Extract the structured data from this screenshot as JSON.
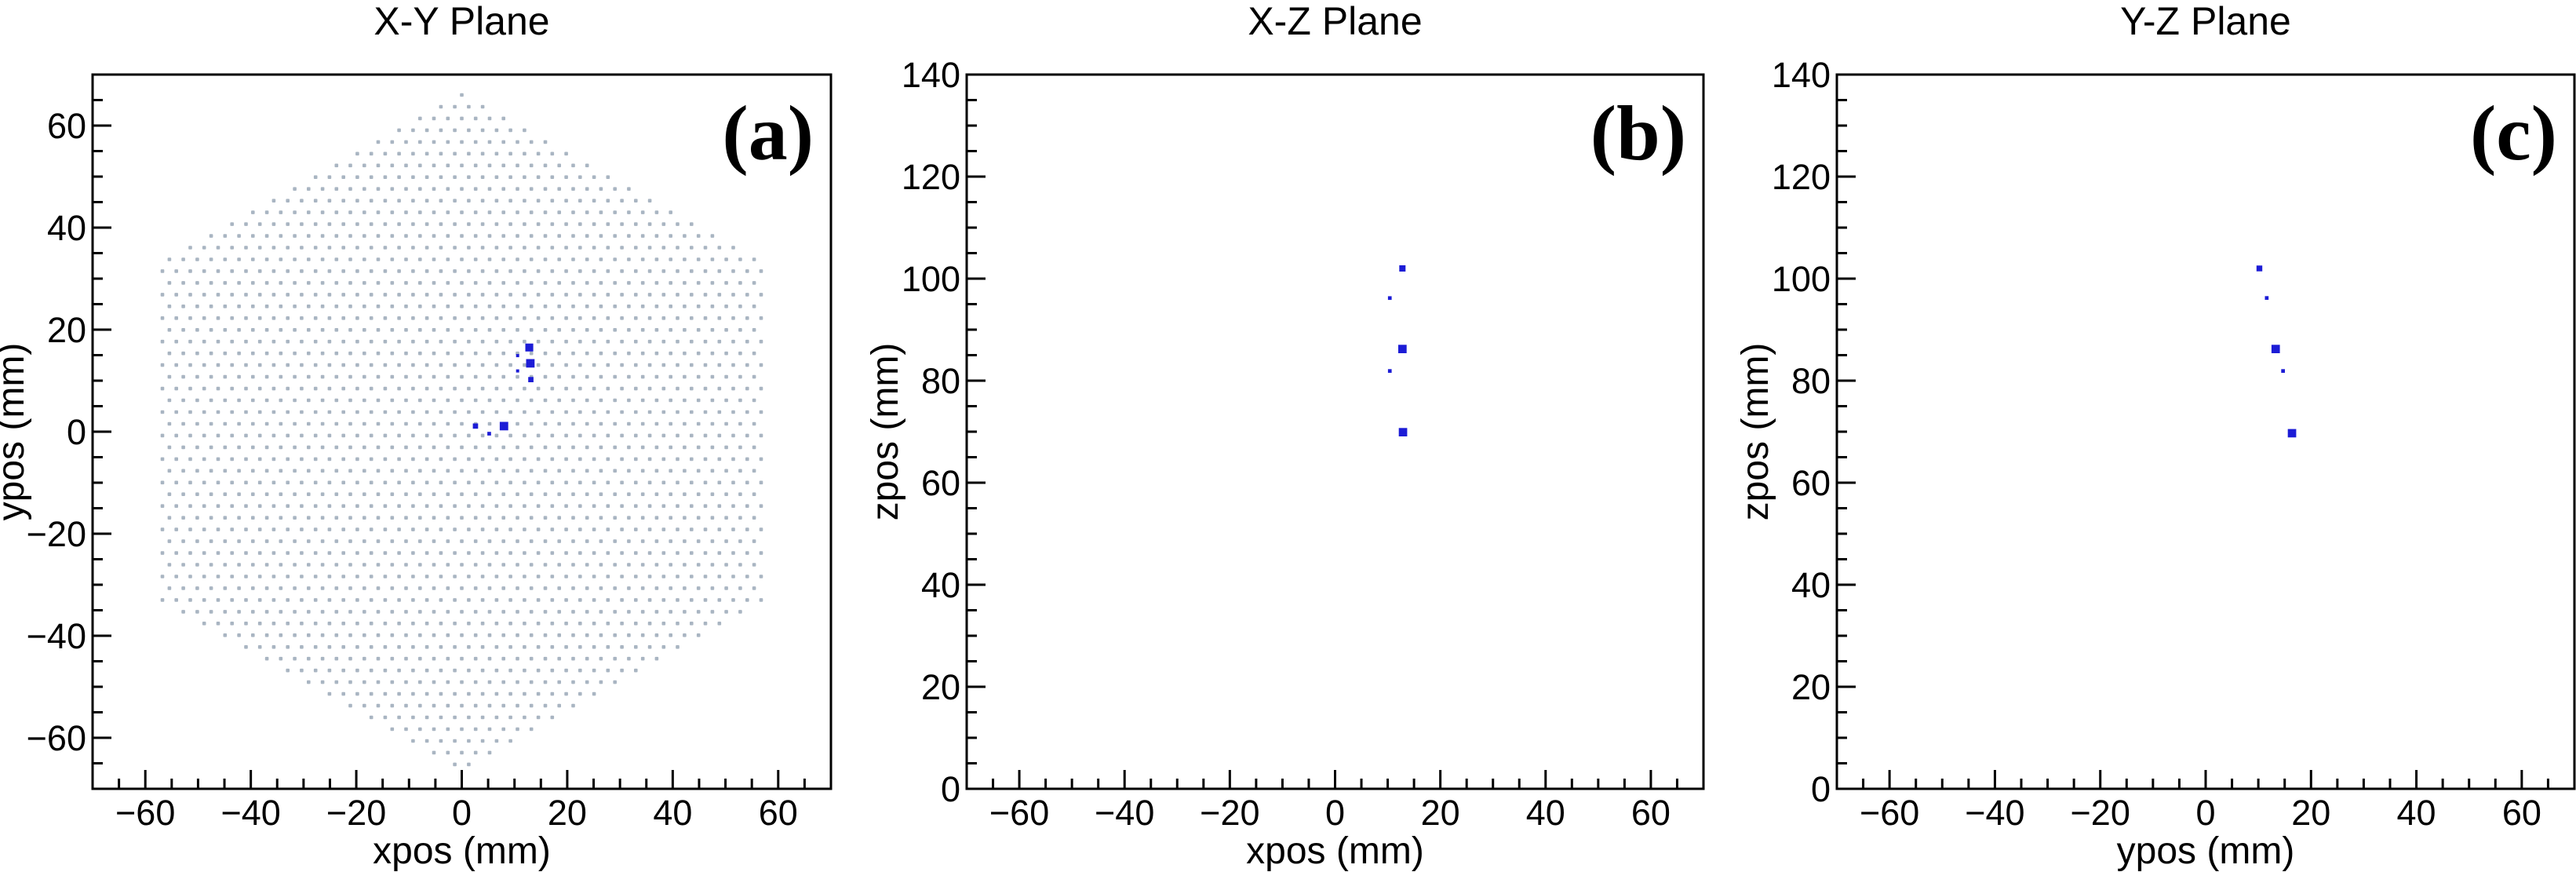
{
  "figure": {
    "background": "#ffffff"
  },
  "style": {
    "hit_color": "#1c1cd6",
    "lattice_color": "#a9b5c2",
    "axis_color": "#000000",
    "text_color": "#000000"
  },
  "chart_data": [
    {
      "type": "scatter",
      "id": "xy-plane",
      "title": "X-Y Plane",
      "corner_label": "(a)",
      "xlabel": "xpos (mm)",
      "ylabel": "ypos (mm)",
      "xlim": [
        -70,
        70
      ],
      "ylim": [
        -70,
        70
      ],
      "xticks": [
        -60,
        -40,
        -20,
        0,
        20,
        40,
        60
      ],
      "xtick_labels": [
        "−60",
        "−40",
        "−20",
        "0",
        "20",
        "40",
        "60"
      ],
      "yticks": [
        -60,
        -40,
        -20,
        0,
        20,
        40,
        60
      ],
      "ytick_labels": [
        "−60",
        "−40",
        "−20",
        "0",
        "20",
        "40",
        "60"
      ],
      "minor_tick_step": 5,
      "grid": false,
      "detector_lattice": {
        "shape": "hexagon-pointy-top",
        "pitch_x_mm": 2.64,
        "pitch_y_mm": 2.302,
        "row_stagger_mm": 1.32,
        "apex_y_mm": 66.0,
        "hex_radius_mm": 66.2,
        "max_abs_x_mm": 57.7
      },
      "hits": [
        {
          "x": 12.8,
          "y": 16.5,
          "size_mm": 1.5
        },
        {
          "x": 10.6,
          "y": 14.9,
          "size_mm": 0.6
        },
        {
          "x": 13.0,
          "y": 13.4,
          "size_mm": 1.6
        },
        {
          "x": 10.6,
          "y": 11.9,
          "size_mm": 0.6
        },
        {
          "x": 13.1,
          "y": 10.2,
          "size_mm": 1.0
        },
        {
          "x": 2.6,
          "y": 1.1,
          "size_mm": 1.0
        },
        {
          "x": 8.0,
          "y": 1.1,
          "size_mm": 1.6
        },
        {
          "x": 5.2,
          "y": -0.4,
          "size_mm": 0.7
        }
      ]
    },
    {
      "type": "scatter",
      "id": "xz-plane",
      "title": "X-Z Plane",
      "corner_label": "(b)",
      "xlabel": "xpos (mm)",
      "ylabel": "zpos (mm)",
      "xlim": [
        -70,
        70
      ],
      "ylim": [
        0,
        140
      ],
      "xticks": [
        -60,
        -40,
        -20,
        0,
        20,
        40,
        60
      ],
      "xtick_labels": [
        "−60",
        "−40",
        "−20",
        "0",
        "20",
        "40",
        "60"
      ],
      "yticks": [
        0,
        20,
        40,
        60,
        80,
        100,
        120,
        140
      ],
      "ytick_labels": [
        "0",
        "20",
        "40",
        "60",
        "80",
        "100",
        "120",
        "140"
      ],
      "minor_tick_step": 5,
      "grid": false,
      "detector_lattice": null,
      "hits": [
        {
          "x": 12.8,
          "y": 102.0,
          "size_mm": 1.2
        },
        {
          "x": 10.4,
          "y": 96.2,
          "size_mm": 0.7
        },
        {
          "x": 12.8,
          "y": 86.2,
          "size_mm": 1.6
        },
        {
          "x": 10.4,
          "y": 81.9,
          "size_mm": 0.7
        },
        {
          "x": 12.9,
          "y": 69.9,
          "size_mm": 1.6
        }
      ]
    },
    {
      "type": "scatter",
      "id": "yz-plane",
      "title": "Y-Z Plane",
      "corner_label": "(c)",
      "xlabel": "ypos (mm)",
      "ylabel": "zpos (mm)",
      "xlim": [
        -70,
        70
      ],
      "ylim": [
        0,
        140
      ],
      "xticks": [
        -60,
        -40,
        -20,
        0,
        20,
        40,
        60
      ],
      "xtick_labels": [
        "−60",
        "−40",
        "−20",
        "0",
        "20",
        "40",
        "60"
      ],
      "yticks": [
        0,
        20,
        40,
        60,
        80,
        100,
        120,
        140
      ],
      "ytick_labels": [
        "0",
        "20",
        "40",
        "60",
        "80",
        "100",
        "120",
        "140"
      ],
      "minor_tick_step": 5,
      "grid": false,
      "detector_lattice": null,
      "hits": [
        {
          "x": 10.2,
          "y": 102.0,
          "size_mm": 1.1
        },
        {
          "x": 11.6,
          "y": 96.2,
          "size_mm": 0.7
        },
        {
          "x": 13.3,
          "y": 86.2,
          "size_mm": 1.6
        },
        {
          "x": 14.7,
          "y": 81.9,
          "size_mm": 0.7
        },
        {
          "x": 16.4,
          "y": 69.7,
          "size_mm": 1.6
        }
      ]
    }
  ]
}
